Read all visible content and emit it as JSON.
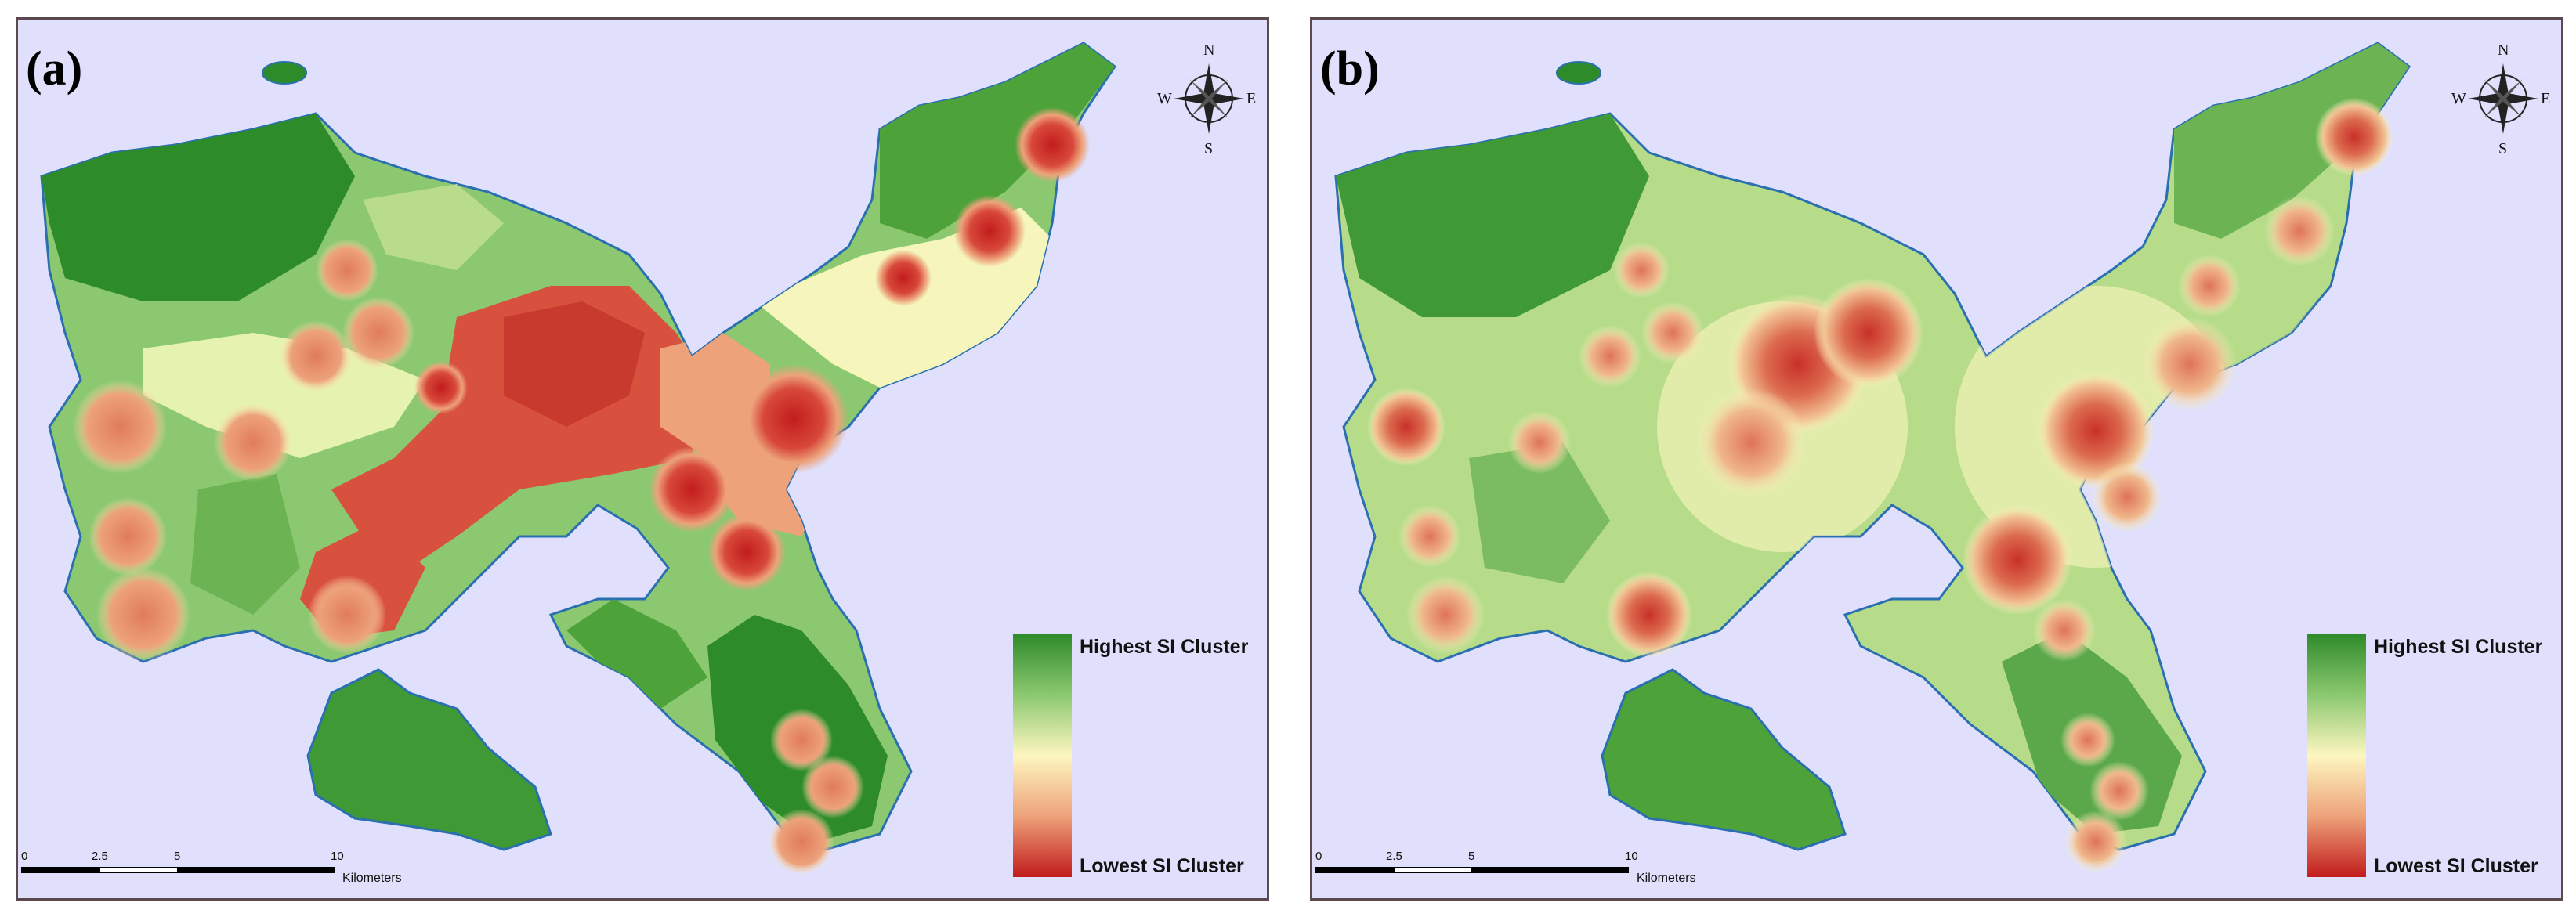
{
  "panels": [
    {
      "label": "(a)",
      "legend_high": "Highest SI Cluster",
      "legend_low": "Lowest SI Cluster",
      "scale_ticks": [
        "0",
        "2.5",
        "5",
        "10"
      ],
      "scale_unit": "Kilometers",
      "compass": {
        "n": "N",
        "s": "S",
        "e": "E",
        "w": "W"
      }
    },
    {
      "label": "(b)",
      "legend_high": "Highest SI Cluster",
      "legend_low": "Lowest SI Cluster",
      "scale_ticks": [
        "0",
        "2.5",
        "5",
        "10"
      ],
      "scale_unit": "Kilometers",
      "compass": {
        "n": "N",
        "s": "S",
        "e": "E",
        "w": "W"
      }
    }
  ],
  "colors": {
    "sea": "#e0e0fc",
    "high": "#2e8b2a",
    "mid_high": "#8cc870",
    "mid": "#fdf6c0",
    "mid_low": "#eda27a",
    "low": "#c21c1c",
    "coastline": "#2a6fb0"
  }
}
